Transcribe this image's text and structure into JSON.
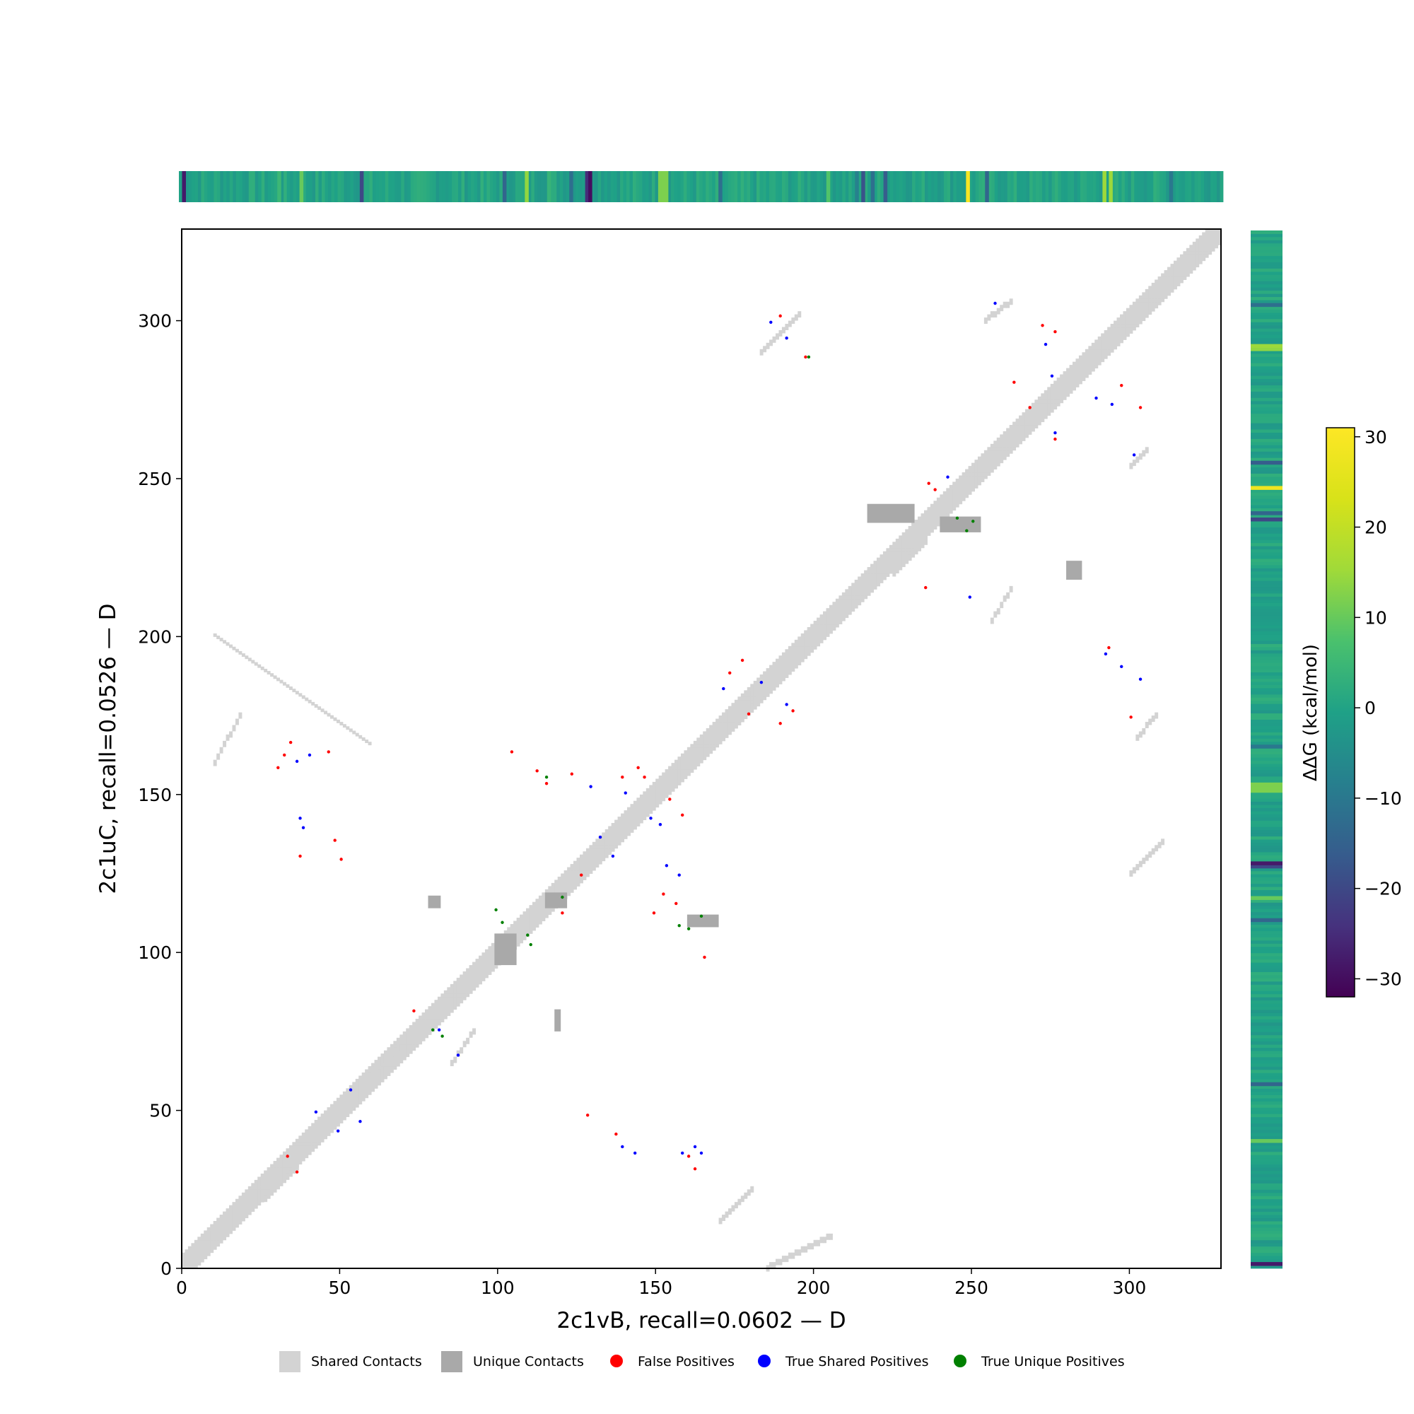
{
  "chart_data": {
    "type": "heatmap",
    "title": "",
    "xlabel": "2c1vB, recall=0.0602 — D",
    "ylabel": "2c1uC, recall=0.0526 — D",
    "xlim": [
      0,
      329
    ],
    "ylim": [
      0,
      329
    ],
    "x_ticks": [
      0,
      50,
      100,
      150,
      200,
      250,
      300
    ],
    "y_ticks": [
      0,
      50,
      100,
      150,
      200,
      250,
      300
    ],
    "grid": false,
    "legend_placement": "bottom",
    "legend": [
      {
        "label": "Shared Contacts",
        "marker": "square",
        "color": "#d3d3d3"
      },
      {
        "label": "Unique Contacts",
        "marker": "square",
        "color": "#a9a9a9"
      },
      {
        "label": "False Positives",
        "marker": "circle",
        "color": "#ff0000"
      },
      {
        "label": "True Shared Positives",
        "marker": "circle",
        "color": "#0000ff"
      },
      {
        "label": "True Unique Positives",
        "marker": "circle",
        "color": "#008000"
      }
    ],
    "colorbar": {
      "label": "ΔΔG (kcal/mol)",
      "range": [
        -32,
        31
      ],
      "ticks": [
        -30,
        -20,
        -10,
        0,
        10,
        20,
        30
      ],
      "tick_labels": [
        "−30",
        "−20",
        "−10",
        "0",
        "10",
        "20",
        "30"
      ],
      "colormap": "viridis"
    },
    "ddg_special_top": [
      {
        "pos": 1,
        "value": -28
      },
      {
        "pos": 31,
        "value": 5
      },
      {
        "pos": 38,
        "value": 10
      },
      {
        "pos": 57,
        "value": -20
      },
      {
        "pos": 102,
        "value": -14
      },
      {
        "pos": 109,
        "value": 14
      },
      {
        "pos": 116,
        "value": 4
      },
      {
        "pos": 123,
        "value": -12
      },
      {
        "pos": 128,
        "value": -25
      },
      {
        "pos": 129,
        "value": -30
      },
      {
        "pos": 151,
        "value": 12
      },
      {
        "pos": 152,
        "value": 12
      },
      {
        "pos": 153,
        "value": 12
      },
      {
        "pos": 170,
        "value": -12
      },
      {
        "pos": 204,
        "value": 8
      },
      {
        "pos": 213,
        "value": -8
      },
      {
        "pos": 215,
        "value": -18
      },
      {
        "pos": 218,
        "value": -12
      },
      {
        "pos": 222,
        "value": -16
      },
      {
        "pos": 248,
        "value": 30
      },
      {
        "pos": 254,
        "value": -14
      },
      {
        "pos": 291,
        "value": 15
      },
      {
        "pos": 293,
        "value": 15
      },
      {
        "pos": 312,
        "value": -10
      }
    ],
    "ddg_special_right": [
      {
        "pos": 1,
        "value": -28
      },
      {
        "pos": 40,
        "value": 10
      },
      {
        "pos": 58,
        "value": -14
      },
      {
        "pos": 110,
        "value": -14
      },
      {
        "pos": 117,
        "value": 10
      },
      {
        "pos": 127,
        "value": -20
      },
      {
        "pos": 128,
        "value": -28
      },
      {
        "pos": 151,
        "value": 12
      },
      {
        "pos": 152,
        "value": 12
      },
      {
        "pos": 153,
        "value": 12
      },
      {
        "pos": 165,
        "value": -10
      },
      {
        "pos": 237,
        "value": -20
      },
      {
        "pos": 239,
        "value": -14
      },
      {
        "pos": 247,
        "value": 28
      },
      {
        "pos": 255,
        "value": -16
      },
      {
        "pos": 291,
        "value": 14
      },
      {
        "pos": 292,
        "value": 15
      },
      {
        "pos": 305,
        "value": -12
      }
    ],
    "shared_contact_regions": [
      {
        "x": [
          26,
          36
        ],
        "y": [
          22,
          32
        ]
      },
      {
        "x": [
          58,
          68
        ],
        "y": [
          60,
          70
        ]
      },
      {
        "x": [
          175,
          185
        ],
        "y": [
          173,
          183
        ]
      },
      {
        "x": [
          225,
          235
        ],
        "y": [
          220,
          230
        ]
      },
      {
        "x": [
          85,
          92
        ],
        "y": [
          65,
          75
        ]
      },
      {
        "x": [
          183,
          195
        ],
        "y": [
          290,
          302
        ]
      },
      {
        "x": [
          254,
          262
        ],
        "y": [
          300,
          306
        ]
      },
      {
        "x": [
          10,
          18
        ],
        "y": [
          160,
          175
        ]
      },
      {
        "x": [
          302,
          308
        ],
        "y": [
          168,
          175
        ]
      },
      {
        "x": [
          185,
          205
        ],
        "y": [
          0,
          10
        ]
      },
      {
        "x": [
          170,
          180
        ],
        "y": [
          15,
          25
        ]
      },
      {
        "x": [
          256,
          262
        ],
        "y": [
          205,
          215
        ]
      },
      {
        "x": [
          300,
          305
        ],
        "y": [
          254,
          259
        ]
      },
      {
        "x": [
          300,
          310
        ],
        "y": [
          125,
          135
        ]
      }
    ],
    "unique_contact_regions": [
      {
        "x": [
          240,
          253
        ],
        "y": [
          233,
          238
        ]
      },
      {
        "x": [
          217,
          232
        ],
        "y": [
          236,
          242
        ]
      },
      {
        "x": [
          280,
          285
        ],
        "y": [
          218,
          224
        ]
      },
      {
        "x": [
          99,
          106
        ],
        "y": [
          96,
          106
        ]
      },
      {
        "x": [
          115,
          122
        ],
        "y": [
          114,
          119
        ]
      },
      {
        "x": [
          118,
          120
        ],
        "y": [
          75,
          82
        ]
      },
      {
        "x": [
          78,
          82
        ],
        "y": [
          114,
          118
        ]
      },
      {
        "x": [
          160,
          170
        ],
        "y": [
          108,
          112
        ]
      }
    ],
    "false_positives": [
      [
        32,
        162
      ],
      [
        34,
        166
      ],
      [
        30,
        158
      ],
      [
        46,
        163
      ],
      [
        48,
        135
      ],
      [
        50,
        129
      ],
      [
        37,
        130
      ],
      [
        104,
        163
      ],
      [
        112,
        157
      ],
      [
        115,
        153
      ],
      [
        123,
        156
      ],
      [
        139,
        155
      ],
      [
        146,
        155
      ],
      [
        144,
        158
      ],
      [
        154,
        148
      ],
      [
        158,
        143
      ],
      [
        149,
        112
      ],
      [
        152,
        118
      ],
      [
        156,
        115
      ],
      [
        165,
        98
      ],
      [
        173,
        188
      ],
      [
        177,
        192
      ],
      [
        179,
        175
      ],
      [
        189,
        172
      ],
      [
        193,
        176
      ],
      [
        272,
        298
      ],
      [
        276,
        296
      ],
      [
        297,
        279
      ],
      [
        303,
        272
      ],
      [
        236,
        248
      ],
      [
        238,
        246
      ],
      [
        126,
        124
      ],
      [
        120,
        112
      ],
      [
        73,
        81
      ],
      [
        128,
        48
      ],
      [
        137,
        42
      ],
      [
        160,
        35
      ],
      [
        162,
        31
      ],
      [
        33,
        35
      ],
      [
        36,
        30
      ],
      [
        263,
        280
      ],
      [
        268,
        272
      ],
      [
        276,
        262
      ],
      [
        293,
        196
      ],
      [
        300,
        174
      ],
      [
        235,
        215
      ],
      [
        189,
        301
      ],
      [
        197,
        288
      ]
    ],
    "true_shared_positives": [
      [
        36,
        160
      ],
      [
        40,
        162
      ],
      [
        37,
        142
      ],
      [
        38,
        139
      ],
      [
        42,
        49
      ],
      [
        49,
        43
      ],
      [
        53,
        56
      ],
      [
        56,
        46
      ],
      [
        129,
        152
      ],
      [
        140,
        150
      ],
      [
        148,
        142
      ],
      [
        151,
        140
      ],
      [
        153,
        127
      ],
      [
        157,
        124
      ],
      [
        171,
        183
      ],
      [
        183,
        185
      ],
      [
        191,
        178
      ],
      [
        186,
        299
      ],
      [
        191,
        294
      ],
      [
        257,
        305
      ],
      [
        273,
        292
      ],
      [
        289,
        275
      ],
      [
        294,
        273
      ],
      [
        301,
        257
      ],
      [
        292,
        194
      ],
      [
        297,
        190
      ],
      [
        303,
        186
      ],
      [
        158,
        36
      ],
      [
        162,
        38
      ],
      [
        164,
        36
      ],
      [
        139,
        38
      ],
      [
        143,
        36
      ],
      [
        132,
        136
      ],
      [
        136,
        130
      ],
      [
        249,
        212
      ],
      [
        242,
        250
      ],
      [
        276,
        264
      ],
      [
        275,
        282
      ],
      [
        81,
        75
      ],
      [
        87,
        67
      ]
    ],
    "true_unique_positives": [
      [
        115,
        155
      ],
      [
        99,
        113
      ],
      [
        101,
        109
      ],
      [
        109,
        105
      ],
      [
        110,
        102
      ],
      [
        120,
        117
      ],
      [
        79,
        75
      ],
      [
        82,
        73
      ],
      [
        157,
        108
      ],
      [
        160,
        107
      ],
      [
        164,
        111
      ],
      [
        245,
        237
      ],
      [
        248,
        233
      ],
      [
        250,
        236
      ],
      [
        198,
        288
      ]
    ]
  }
}
